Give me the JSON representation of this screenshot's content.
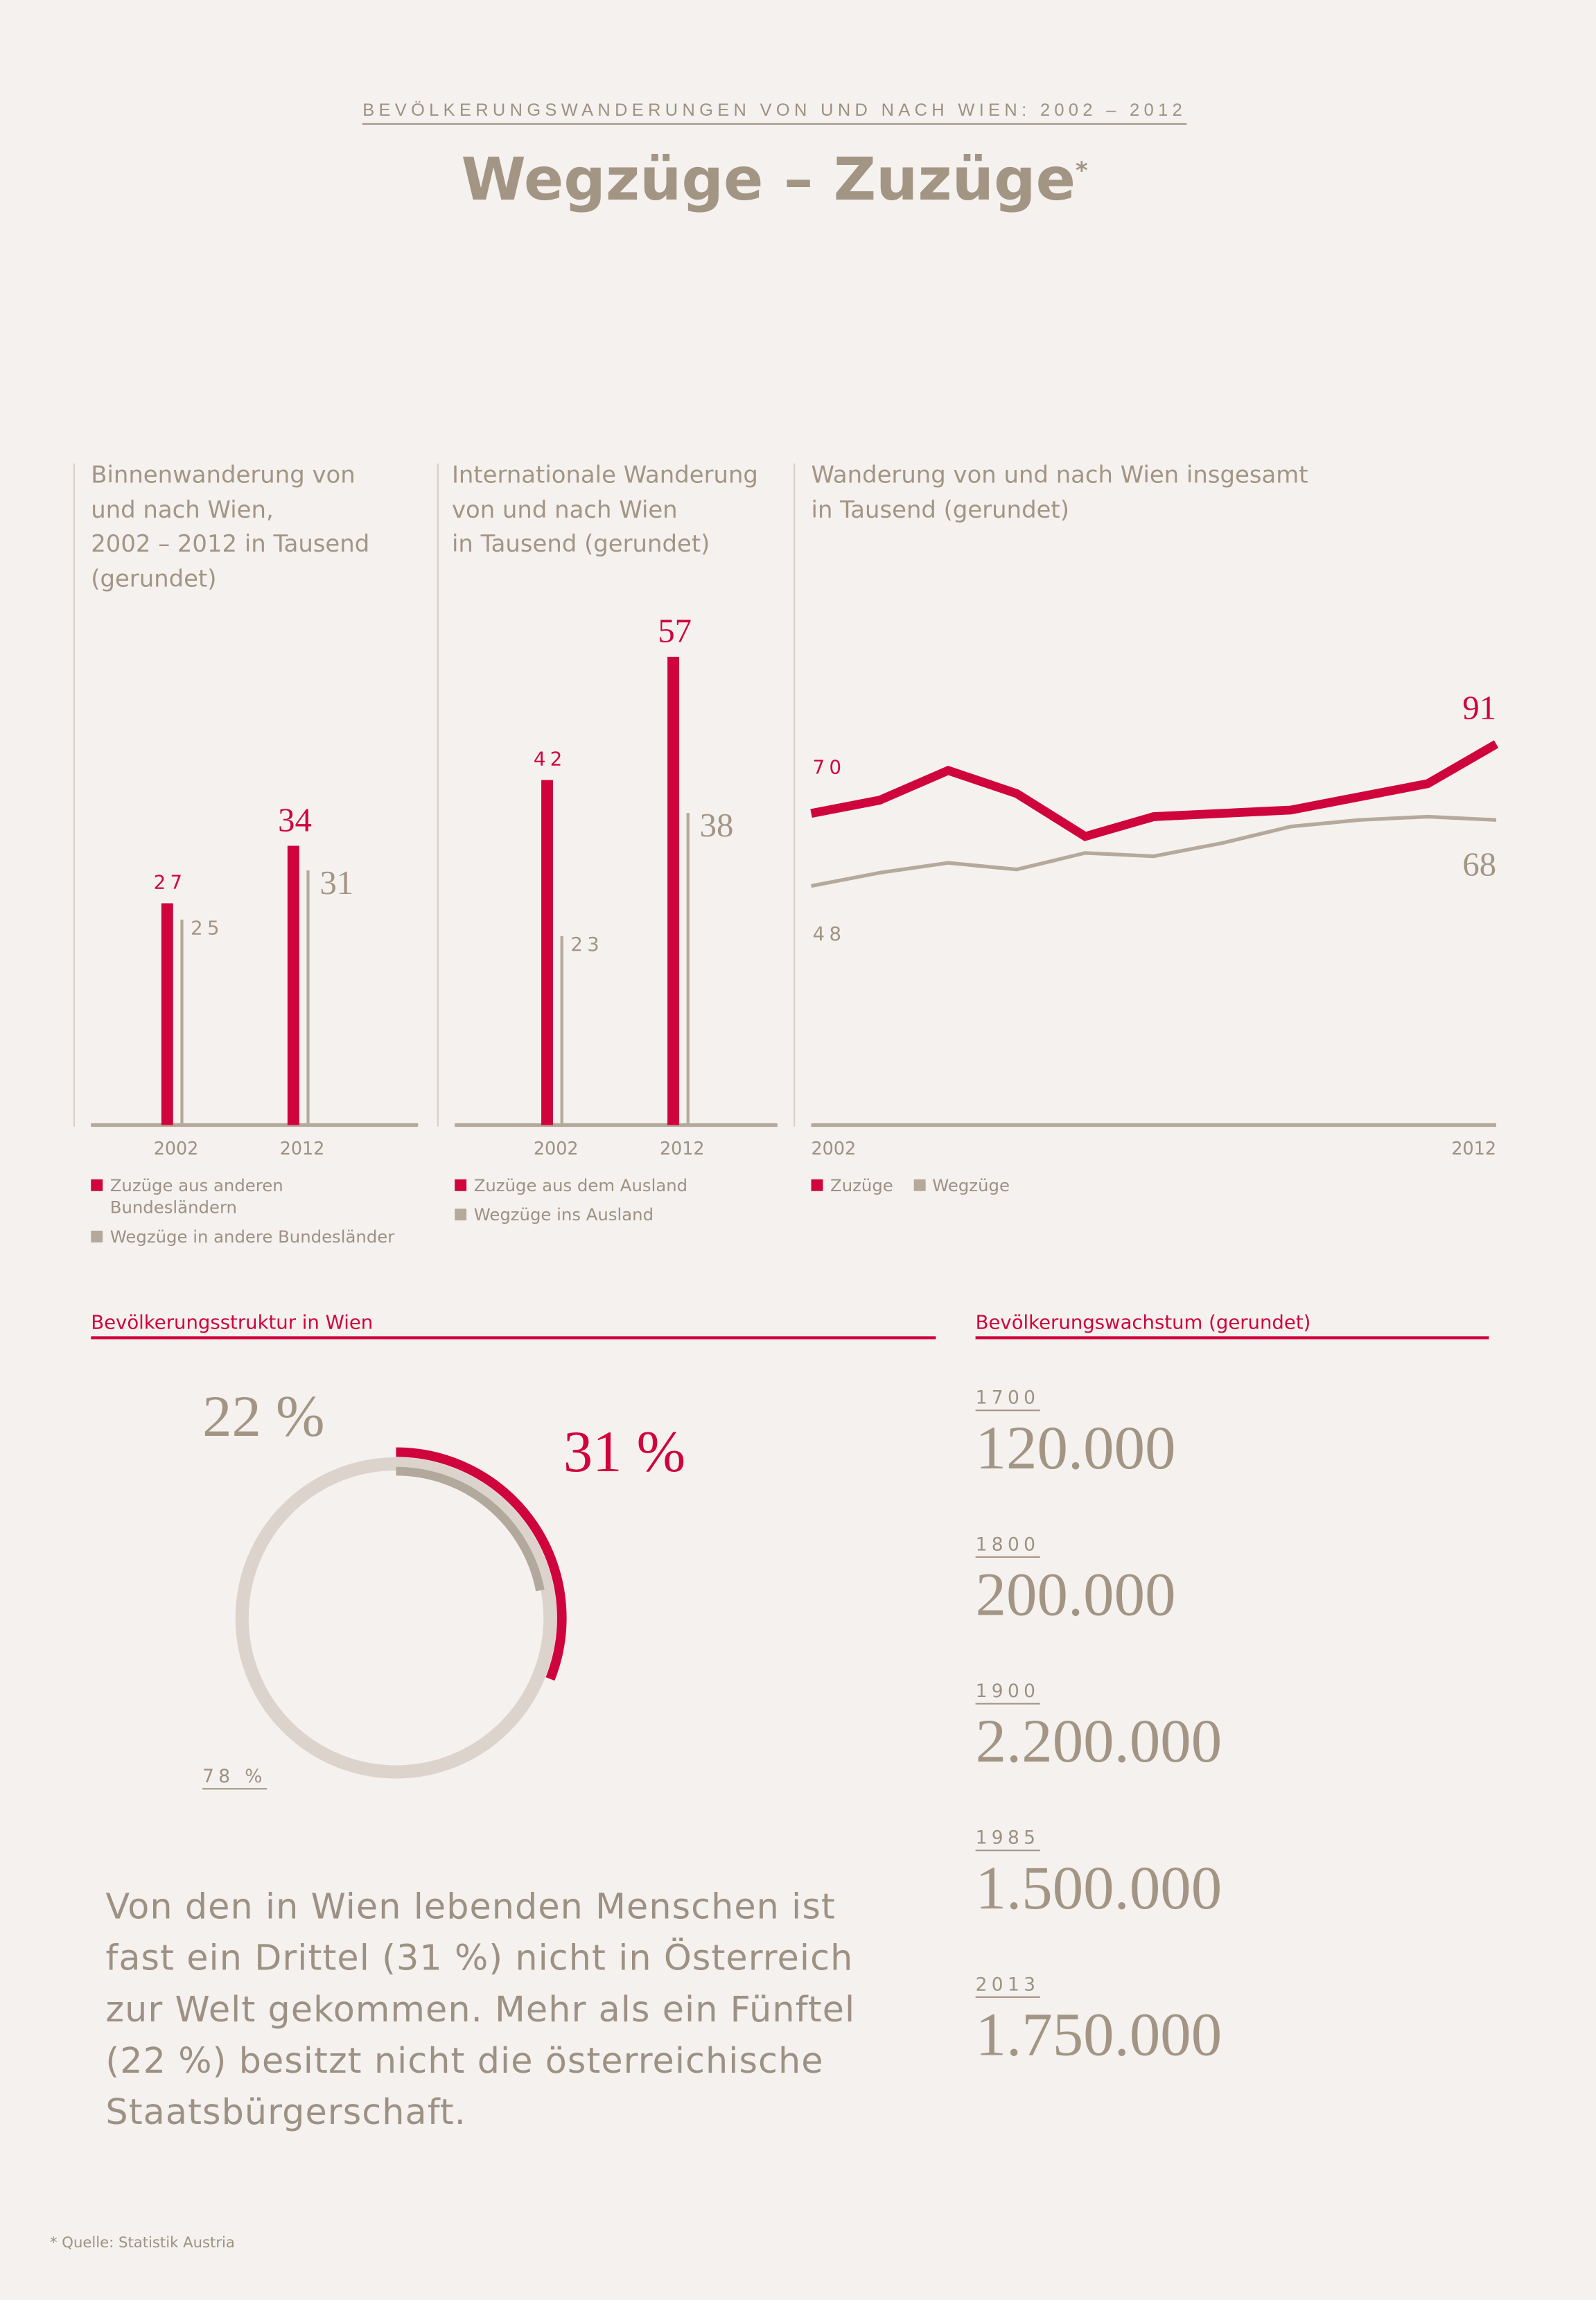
{
  "header": {
    "supertitle": "BEVÖLKERUNGSWANDERUNGEN VON UND NACH WIEN: 2002 – 2012",
    "title": "Wegzüge – Zuzüge",
    "asterisk": "*"
  },
  "colors": {
    "accent": "#d0043c",
    "secondary": "#b5a99b",
    "text": "#9d9184",
    "background": "#f4f1ef"
  },
  "chart_data": [
    {
      "type": "bar",
      "title": "Binnenwanderung von und nach Wien, 2002 – 2012 in Tausend (gerundet)",
      "title_lines": [
        "Binnenwanderung von",
        "und nach Wien,",
        "2002 – 2012 in Tausend",
        "(gerundet)"
      ],
      "categories": [
        "2002",
        "2012"
      ],
      "series": [
        {
          "name": "Zuzüge aus anderen Bundesländern",
          "values": [
            27,
            34
          ],
          "labels": [
            "27",
            "34"
          ]
        },
        {
          "name": "Wegzüge in andere Bundesländer",
          "values": [
            25,
            31
          ],
          "labels": [
            "25",
            "31"
          ]
        }
      ],
      "legend": [
        "Zuzüge aus anderen",
        "Bundesländern",
        "Wegzüge in andere Bundesländer"
      ]
    },
    {
      "type": "bar",
      "title": "Internationale Wanderung von und nach Wien in Tausend (gerundet)",
      "title_lines": [
        "Internationale Wanderung",
        "von und nach Wien",
        "in Tausend (gerundet)"
      ],
      "categories": [
        "2002",
        "2012"
      ],
      "series": [
        {
          "name": "Zuzüge aus dem Ausland",
          "values": [
            42,
            57
          ],
          "labels": [
            "42",
            "57"
          ]
        },
        {
          "name": "Wegzüge ins Ausland",
          "values": [
            23,
            38
          ],
          "labels": [
            "23",
            "38"
          ]
        }
      ],
      "legend": [
        "Zuzüge aus dem Ausland",
        "Wegzüge ins Ausland"
      ]
    },
    {
      "type": "line",
      "title": "Wanderung von und nach Wien insgesamt in Tausend (gerundet)",
      "title_lines": [
        "Wanderung von und nach Wien insgesamt",
        "in Tausend (gerundet)"
      ],
      "x": [
        2002,
        2003,
        2004,
        2005,
        2006,
        2007,
        2008,
        2009,
        2010,
        2011,
        2012
      ],
      "xtick_labels": [
        "2002",
        "2012"
      ],
      "series": [
        {
          "name": "Zuzüge",
          "values": [
            70,
            74,
            83,
            76,
            63,
            69,
            70,
            71,
            75,
            79,
            91
          ],
          "start_label": "70",
          "end_label": "91"
        },
        {
          "name": "Wegzüge",
          "values": [
            48,
            52,
            55,
            53,
            58,
            57,
            61,
            66,
            68,
            69,
            68
          ],
          "start_label": "48",
          "end_label": "68"
        }
      ],
      "legend": [
        "Zuzüge",
        "Wegzüge"
      ]
    },
    {
      "type": "pie",
      "title": "Bevölkerungsstruktur in Wien",
      "slices": [
        {
          "label": "31 %",
          "value": 31,
          "meaning": "nicht in Österreich geboren"
        },
        {
          "label": "22 %",
          "value": 22,
          "meaning": "keine österreichische Staatsbürgerschaft"
        },
        {
          "label": "78 %",
          "value": 78
        }
      ]
    }
  ],
  "structure": {
    "heading": "Bevölkerungsstruktur in Wien",
    "label_31": "31 %",
    "label_22": "22 %",
    "label_78": "78 %",
    "text": "Von den in Wien lebenden Menschen ist fast ein Drittel (31 %) nicht in Österreich zur Welt gekommen. Mehr als ein Fünftel (22 %) besitzt nicht die österreichische Staatsbürgerschaft."
  },
  "growth": {
    "heading": "Bevölkerungswachstum (gerundet)",
    "items": [
      {
        "year": "1700",
        "value": "120.000"
      },
      {
        "year": "1800",
        "value": "200.000"
      },
      {
        "year": "1900",
        "value": "2.200.000"
      },
      {
        "year": "1985",
        "value": "1.500.000"
      },
      {
        "year": "2013",
        "value": "1.750.000"
      }
    ]
  },
  "footer": {
    "source": "* Quelle: Statistik Austria"
  }
}
